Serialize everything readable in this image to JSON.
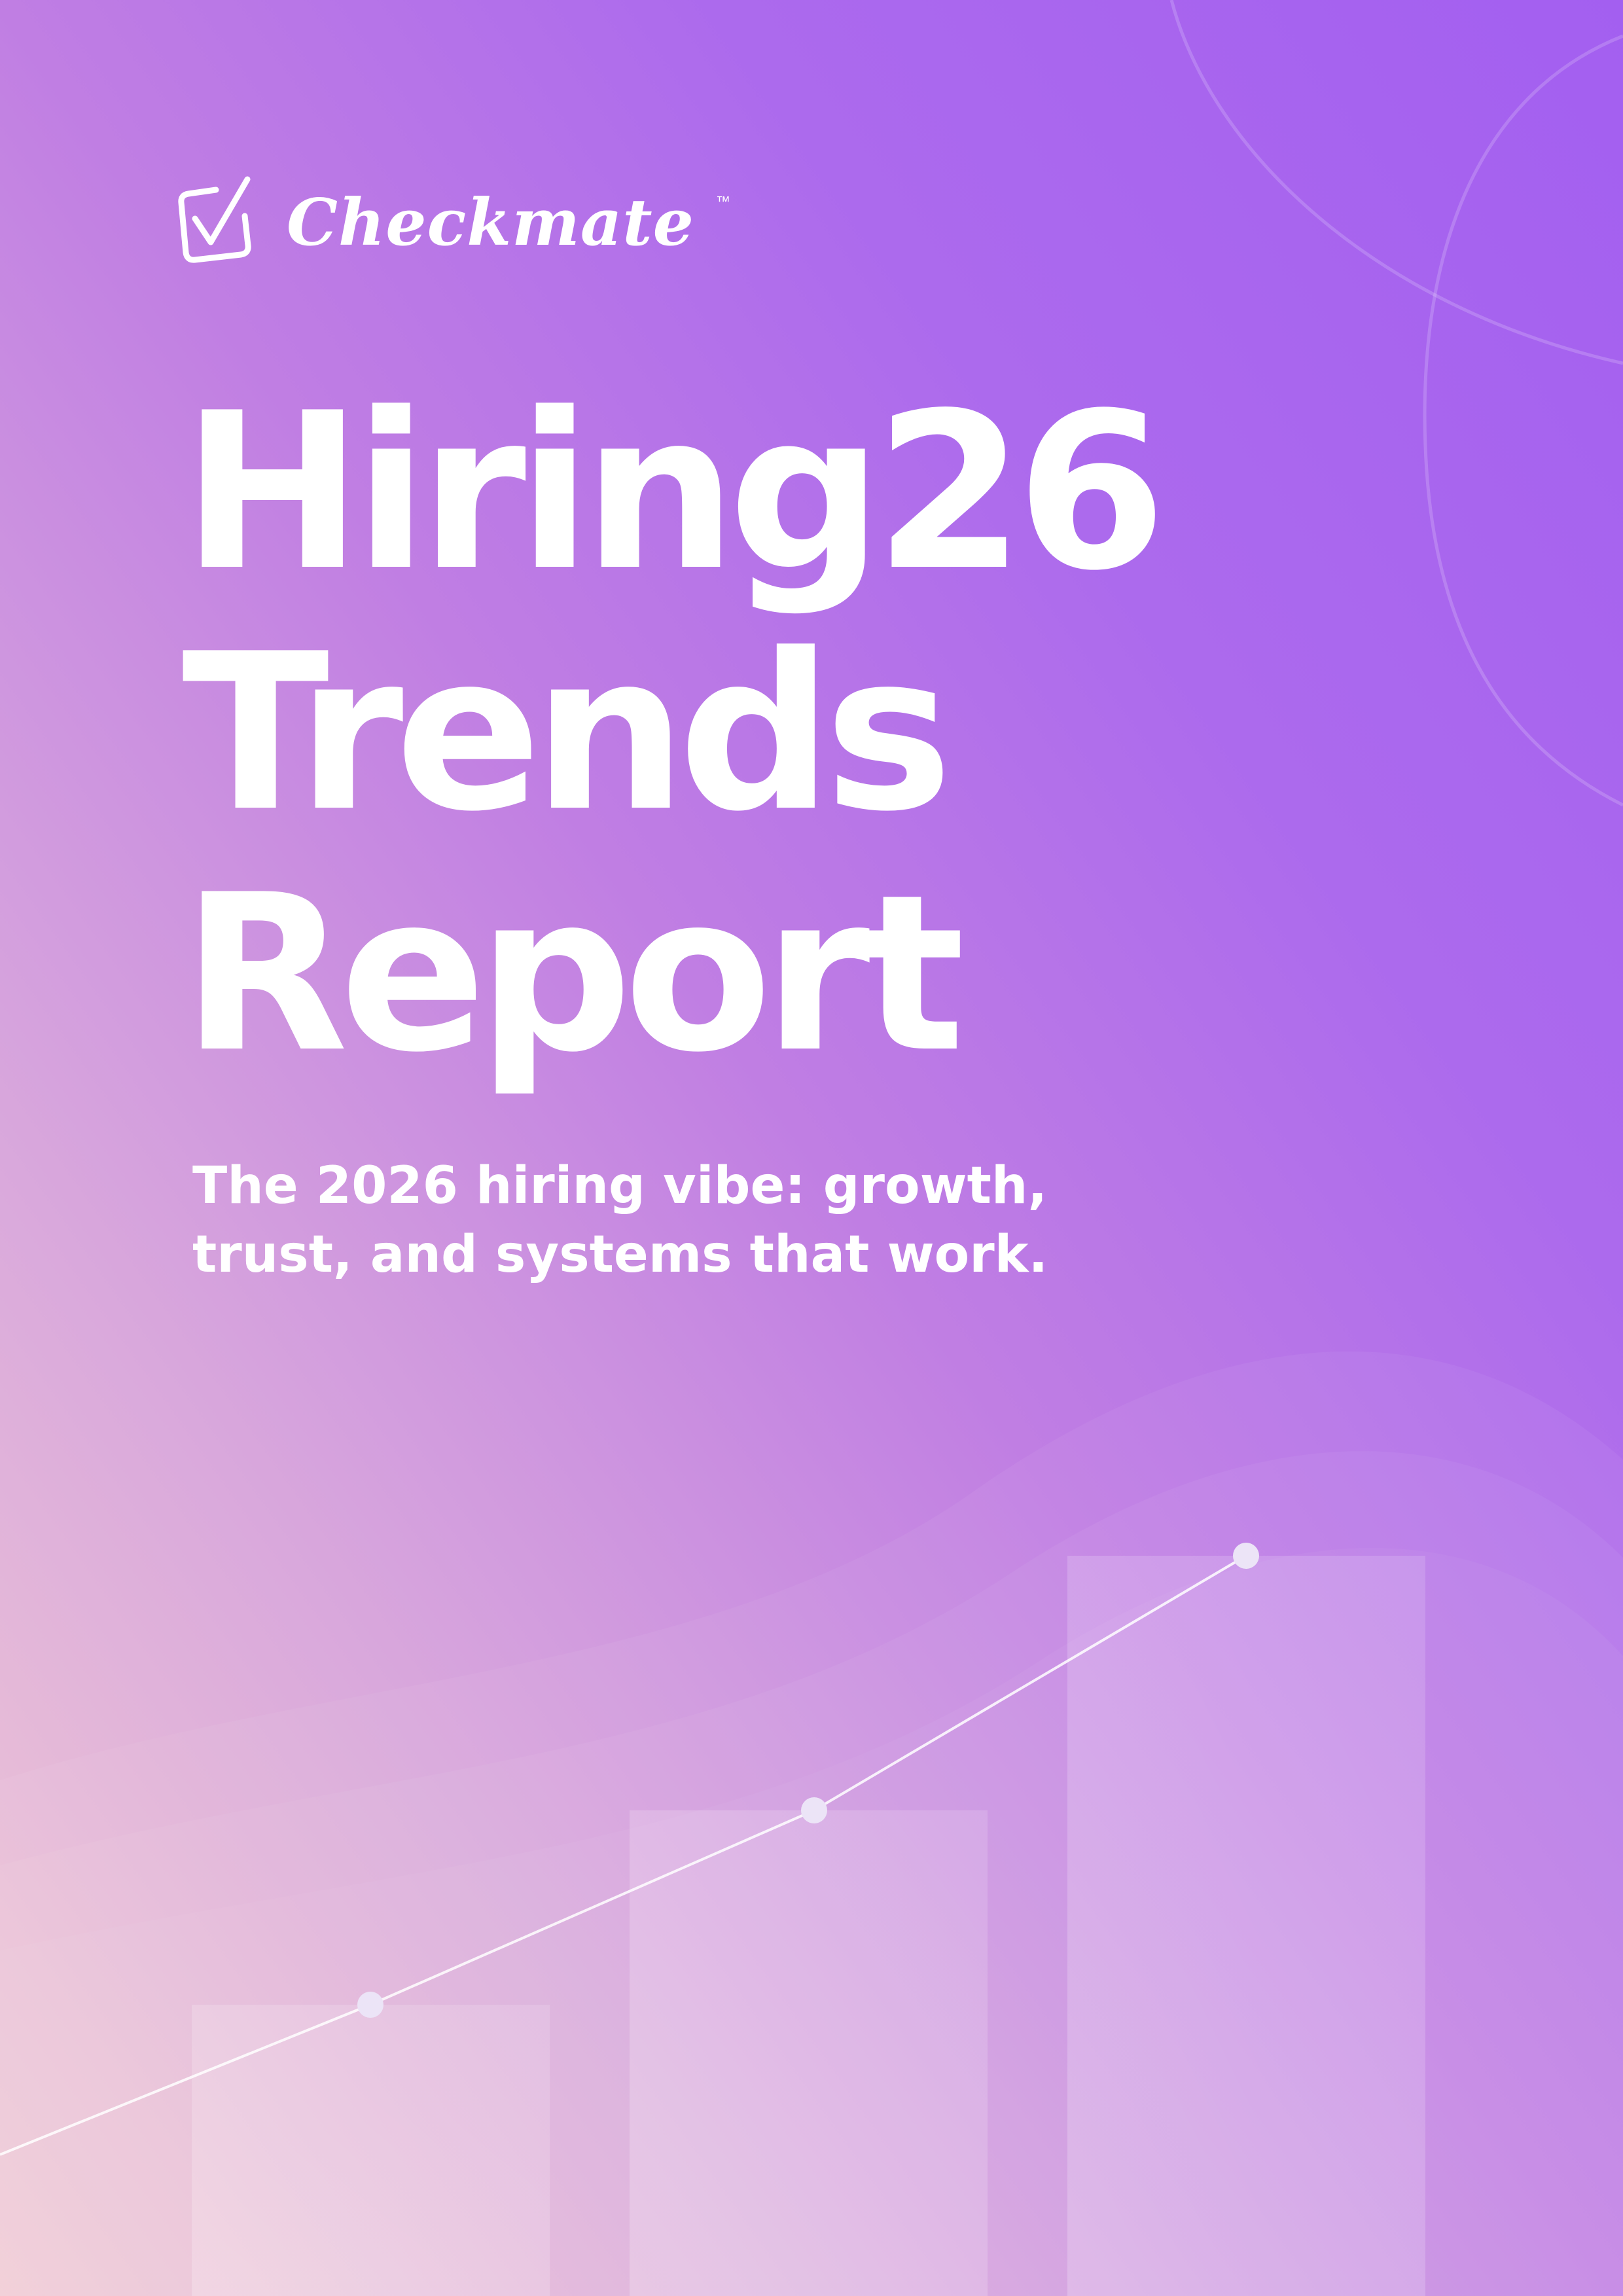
{
  "brand": {
    "name": "Checkmate",
    "trademark": "™"
  },
  "cover": {
    "title_lines": [
      "Hiring26",
      "Trends",
      "Report"
    ],
    "subtitle_lines": [
      "The 2026 hiring vibe: growth,",
      "trust, and systems that work."
    ]
  },
  "colors": {
    "background_top": "#a35ff0",
    "background_bottom": "#f2ccd4",
    "text": "#ffffff"
  },
  "icons": {
    "logo": "checkbox-check-icon"
  },
  "decorative_chart": {
    "type": "bar",
    "bar_count": 3,
    "relative_values": [
      1,
      1.55,
      2.25
    ],
    "trend_line": "rising"
  }
}
